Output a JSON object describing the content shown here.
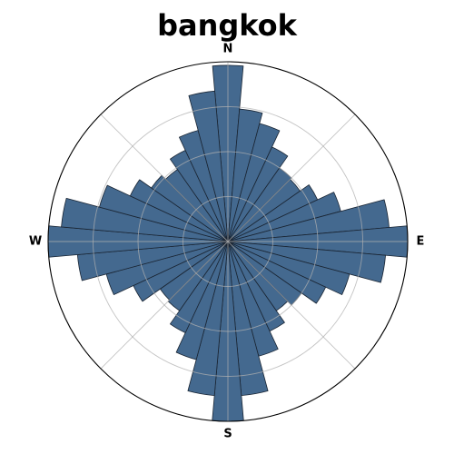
{
  "chart_data": {
    "type": "polar-bar",
    "title": "bangkok",
    "direction_labels": [
      "N",
      "E",
      "S",
      "W"
    ],
    "bar_color": "#44698f",
    "bar_edge_color": "#1a2533",
    "grid_color": "#b0b0b0",
    "rmax": 1.0,
    "rgrid": [
      0.25,
      0.5,
      0.75
    ],
    "bins": 36,
    "bin_width_deg": 10,
    "directions_deg": [
      0,
      10,
      20,
      30,
      40,
      50,
      60,
      70,
      80,
      90,
      100,
      110,
      120,
      130,
      140,
      150,
      160,
      170,
      180,
      190,
      200,
      210,
      220,
      230,
      240,
      250,
      260,
      270,
      280,
      290,
      300,
      310,
      320,
      330,
      340,
      350
    ],
    "values": [
      0.98,
      0.74,
      0.68,
      0.58,
      0.5,
      0.49,
      0.55,
      0.65,
      0.9,
      1.0,
      0.88,
      0.7,
      0.6,
      0.5,
      0.47,
      0.55,
      0.66,
      0.86,
      1.0,
      0.86,
      0.68,
      0.56,
      0.47,
      0.46,
      0.58,
      0.7,
      0.84,
      1.0,
      0.93,
      0.74,
      0.6,
      0.52,
      0.49,
      0.56,
      0.64,
      0.84
    ]
  }
}
